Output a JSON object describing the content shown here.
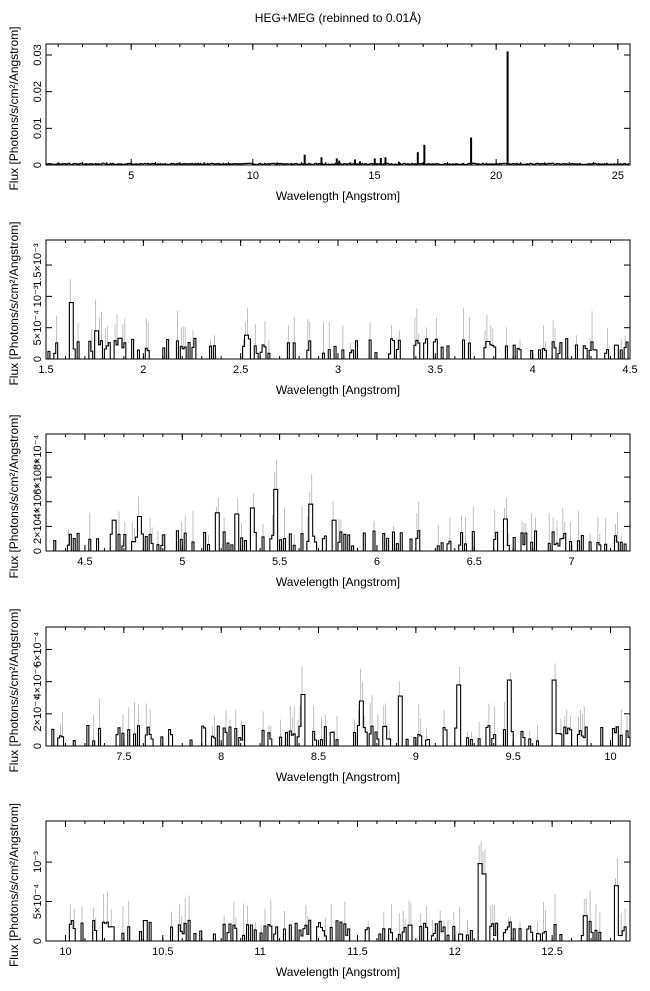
{
  "title": "HEG+MEG (rebinned to 0.01Å)",
  "chart_data": [
    {
      "type": "line",
      "style": "histogram-with-errorbars",
      "xlabel": "Wavelength [Angstrom]",
      "ylabel": "Flux [Photons/s/cm²/Angstrom]",
      "xlim": [
        1.5,
        25.5
      ],
      "ylim": [
        0,
        0.033
      ],
      "xticks": [
        5,
        10,
        15,
        20,
        25
      ],
      "xtick_labels": [
        "5",
        "10",
        "15",
        "20",
        "25"
      ],
      "yticks": [
        0,
        0.01,
        0.02,
        0.03
      ],
      "ytick_labels": [
        "0",
        "0.01",
        "0.02",
        "0.03"
      ],
      "lines": [
        {
          "x": 12.13,
          "y": 0.0028
        },
        {
          "x": 12.82,
          "y": 0.0021
        },
        {
          "x": 13.45,
          "y": 0.0018
        },
        {
          "x": 13.55,
          "y": 0.0012
        },
        {
          "x": 14.2,
          "y": 0.0015
        },
        {
          "x": 14.4,
          "y": 0.001
        },
        {
          "x": 15.01,
          "y": 0.0018
        },
        {
          "x": 15.26,
          "y": 0.0019
        },
        {
          "x": 15.45,
          "y": 0.0021
        },
        {
          "x": 16.0,
          "y": 0.0009
        },
        {
          "x": 16.78,
          "y": 0.0035
        },
        {
          "x": 17.05,
          "y": 0.0055
        },
        {
          "x": 18.97,
          "y": 0.0075
        },
        {
          "x": 20.47,
          "y": 0.031
        }
      ],
      "baseline": 0.0003
    },
    {
      "type": "line",
      "style": "histogram-with-errorbars",
      "xlabel": "Wavelength [Angstrom]",
      "ylabel": "Flux [Photons/s/cm²/Angstrom]",
      "xlim": [
        1.5,
        4.5
      ],
      "ylim": [
        0,
        0.0019
      ],
      "xticks": [
        1.5,
        2,
        2.5,
        3,
        3.5,
        4,
        4.5
      ],
      "xtick_labels": [
        "1.5",
        "2",
        "2.5",
        "3",
        "3.5",
        "4",
        "4.5"
      ],
      "yticks": [
        0,
        0.0005,
        0.001,
        0.0015
      ],
      "ytick_labels": [
        "0",
        "5×10⁻⁴",
        "10⁻³",
        "1.5×10⁻³"
      ],
      "peaks": [
        {
          "x": 1.63,
          "y": 0.0009
        },
        {
          "x": 1.76,
          "y": 0.00045
        },
        {
          "x": 1.88,
          "y": 0.00033
        },
        {
          "x": 2.53,
          "y": 0.00038
        },
        {
          "x": 3.77,
          "y": 0.00028
        },
        {
          "x": 4.43,
          "y": 0.00022
        }
      ]
    },
    {
      "type": "line",
      "style": "histogram-with-errorbars",
      "xlabel": "Wavelength [Angstrom]",
      "ylabel": "Flux [Photons/s/cm²/Angstrom]",
      "xlim": [
        4.3,
        7.3
      ],
      "ylim": [
        0,
        0.00095
      ],
      "xticks": [
        4.5,
        5,
        5.5,
        6,
        6.5,
        7
      ],
      "xtick_labels": [
        "4.5",
        "5",
        "5.5",
        "6",
        "6.5",
        "7"
      ],
      "yticks": [
        0,
        0.0002,
        0.0004,
        0.0006,
        0.0008
      ],
      "ytick_labels": [
        "0",
        "2×10⁻⁴",
        "4×10⁻⁴",
        "6×10⁻⁴",
        "8×10⁻⁴"
      ],
      "peaks": [
        {
          "x": 4.65,
          "y": 0.00025
        },
        {
          "x": 4.78,
          "y": 0.00028
        },
        {
          "x": 5.18,
          "y": 0.00031
        },
        {
          "x": 5.28,
          "y": 0.0003
        },
        {
          "x": 5.36,
          "y": 0.00035
        },
        {
          "x": 5.48,
          "y": 0.0005
        },
        {
          "x": 5.66,
          "y": 0.00038
        },
        {
          "x": 5.78,
          "y": 0.00025
        },
        {
          "x": 6.66,
          "y": 0.00026
        }
      ]
    },
    {
      "type": "line",
      "style": "histogram-with-errorbars",
      "xlabel": "Wavelength [Angstrom]",
      "ylabel": "Flux [Photons/s/cm²/Angstrom]",
      "xlim": [
        7.1,
        10.1
      ],
      "ylim": [
        0,
        0.00074
      ],
      "xticks": [
        7.5,
        8,
        8.5,
        9,
        9.5,
        10
      ],
      "xtick_labels": [
        "7.5",
        "8",
        "8.5",
        "9",
        "9.5",
        "10"
      ],
      "yticks": [
        0,
        0.0002,
        0.0004,
        0.0006
      ],
      "ytick_labels": [
        "0",
        "2×10⁻⁴",
        "4×10⁻⁴",
        "6×10⁻⁴"
      ],
      "peaks": [
        {
          "x": 8.42,
          "y": 0.00032
        },
        {
          "x": 8.72,
          "y": 0.00028
        },
        {
          "x": 8.92,
          "y": 0.00031
        },
        {
          "x": 9.22,
          "y": 0.00038
        },
        {
          "x": 9.48,
          "y": 0.00041
        },
        {
          "x": 9.71,
          "y": 0.00041
        }
      ]
    },
    {
      "type": "line",
      "style": "histogram-with-errorbars",
      "xlabel": "Wavelength [Angstrom]",
      "ylabel": "Flux [Photons/s/cm²/Angstrom]",
      "xlim": [
        9.9,
        12.9
      ],
      "ylim": [
        0,
        0.00152
      ],
      "xticks": [
        10,
        10.5,
        11,
        11.5,
        12,
        12.5
      ],
      "xtick_labels": [
        "10",
        "10.5",
        "11",
        "11.5",
        "12",
        "12.5"
      ],
      "yticks": [
        0,
        0.0005,
        0.001
      ],
      "ytick_labels": [
        "0",
        "5×10⁻⁴",
        "10⁻³"
      ],
      "peaks": [
        {
          "x": 10.24,
          "y": 0.00018
        },
        {
          "x": 11.77,
          "y": 0.0002
        },
        {
          "x": 12.13,
          "y": 0.00098
        },
        {
          "x": 12.15,
          "y": 0.00085
        },
        {
          "x": 12.67,
          "y": 0.00032
        },
        {
          "x": 12.83,
          "y": 0.0007
        }
      ]
    }
  ]
}
